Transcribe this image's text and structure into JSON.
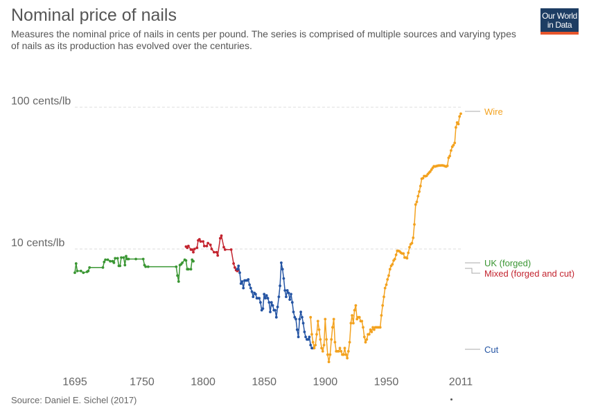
{
  "header": {
    "title": "Nominal price of nails",
    "subtitle": "Measures the nominal price of nails in cents per pound. The series is comprised of multiple sources and varying types of nails as its production has evolved over the centuries."
  },
  "logo": {
    "line1": "Our World",
    "line2": "in Data",
    "bg_color": "#1d3d63",
    "accent_color": "#e7552c"
  },
  "footer": {
    "source": "Source: Daniel E. Sichel (2017)"
  },
  "chart_data": {
    "type": "line",
    "title": "Nominal price of nails",
    "xlabel": "",
    "ylabel": "",
    "y_scale": "log",
    "xlim": [
      1695,
      2011
    ],
    "ylim": [
      1.5,
      120
    ],
    "x_ticks": [
      1695,
      1750,
      1800,
      1850,
      1900,
      1950,
      2011
    ],
    "y_ticks": [
      {
        "value": 10,
        "label": "10 cents/lb"
      },
      {
        "value": 100,
        "label": "100 cents/lb"
      }
    ],
    "grid": "horizontal-dashed",
    "legend": "line-end-labels-right",
    "series": [
      {
        "name": "UK (forged)",
        "color": "#3a9633",
        "points": [
          [
            1695,
            6.8
          ],
          [
            1696,
            7.9
          ],
          [
            1697,
            7.0
          ],
          [
            1700,
            7.0
          ],
          [
            1702,
            6.8
          ],
          [
            1705,
            6.9
          ],
          [
            1706,
            7.0
          ],
          [
            1707,
            7.4
          ],
          [
            1718,
            7.4
          ],
          [
            1719,
            8.1
          ],
          [
            1720,
            8.4
          ],
          [
            1722,
            8.4
          ],
          [
            1724,
            8.2
          ],
          [
            1726,
            8.2
          ],
          [
            1727,
            8.0
          ],
          [
            1728,
            8.6
          ],
          [
            1730,
            8.6
          ],
          [
            1731,
            7.6
          ],
          [
            1732,
            7.6
          ],
          [
            1733,
            8.7
          ],
          [
            1735,
            8.7
          ],
          [
            1736,
            7.7
          ],
          [
            1737,
            8.9
          ],
          [
            1738,
            8.5
          ],
          [
            1739,
            8.5
          ],
          [
            1745,
            8.5
          ],
          [
            1751,
            8.5
          ],
          [
            1752,
            7.7
          ],
          [
            1753,
            7.5
          ],
          [
            1755,
            7.5
          ],
          [
            1778,
            7.5
          ],
          [
            1779,
            6.5
          ],
          [
            1780,
            5.9
          ],
          [
            1781,
            7.7
          ],
          [
            1782,
            7.8
          ],
          [
            1783,
            8.0
          ],
          [
            1785,
            8.4
          ],
          [
            1786,
            8.3
          ],
          [
            1787,
            7.2
          ],
          [
            1788,
            7.2
          ],
          [
            1790,
            7.2
          ],
          [
            1791,
            8.4
          ],
          [
            1792,
            8.2
          ]
        ]
      },
      {
        "name": "Mixed (forged and cut)",
        "color": "#c3242f",
        "points": [
          [
            1786,
            10.4
          ],
          [
            1787,
            10.2
          ],
          [
            1788,
            10.5
          ],
          [
            1790,
            9.9
          ],
          [
            1791,
            9.9
          ],
          [
            1792,
            9.5
          ],
          [
            1793,
            10.0
          ],
          [
            1795,
            10.2
          ],
          [
            1796,
            11.5
          ],
          [
            1797,
            11.7
          ],
          [
            1798,
            11.3
          ],
          [
            1800,
            11.3
          ],
          [
            1801,
            10.5
          ],
          [
            1803,
            10.5
          ],
          [
            1804,
            11.0
          ],
          [
            1806,
            10.7
          ],
          [
            1807,
            10.0
          ],
          [
            1809,
            9.5
          ],
          [
            1811,
            9.5
          ],
          [
            1812,
            9.0
          ],
          [
            1814,
            11.9
          ],
          [
            1815,
            12.4
          ],
          [
            1817,
            10.3
          ],
          [
            1818,
            9.9
          ],
          [
            1823,
            9.9
          ],
          [
            1825,
            7.9
          ],
          [
            1826,
            7.4
          ],
          [
            1827,
            7.1
          ],
          [
            1828,
            7.0
          ],
          [
            1829,
            7.1
          ]
        ]
      },
      {
        "name": "Cut",
        "color": "#2454a3",
        "points": [
          [
            1828,
            7.2
          ],
          [
            1829,
            7.6
          ],
          [
            1830,
            6.8
          ],
          [
            1831,
            5.7
          ],
          [
            1832,
            5.9
          ],
          [
            1833,
            5.3
          ],
          [
            1834,
            6.0
          ],
          [
            1835,
            6.0
          ],
          [
            1836,
            6.0
          ],
          [
            1837,
            6.1
          ],
          [
            1838,
            5.6
          ],
          [
            1839,
            5.3
          ],
          [
            1840,
            5.0
          ],
          [
            1841,
            4.6
          ],
          [
            1842,
            4.9
          ],
          [
            1843,
            4.8
          ],
          [
            1844,
            4.5
          ],
          [
            1845,
            4.5
          ],
          [
            1846,
            4.5
          ],
          [
            1847,
            4.2
          ],
          [
            1848,
            3.7
          ],
          [
            1849,
            3.8
          ],
          [
            1850,
            4.8
          ],
          [
            1851,
            4.5
          ],
          [
            1852,
            4.7
          ],
          [
            1853,
            4.5
          ],
          [
            1854,
            4.2
          ],
          [
            1855,
            3.6
          ],
          [
            1856,
            4.2
          ],
          [
            1857,
            4.0
          ],
          [
            1858,
            3.7
          ],
          [
            1859,
            3.7
          ],
          [
            1860,
            3.3
          ],
          [
            1861,
            3.9
          ],
          [
            1862,
            4.6
          ],
          [
            1863,
            5.5
          ],
          [
            1864,
            8.0
          ],
          [
            1865,
            7.2
          ],
          [
            1866,
            6.2
          ],
          [
            1867,
            5.1
          ],
          [
            1868,
            4.6
          ],
          [
            1869,
            5.1
          ],
          [
            1870,
            4.9
          ],
          [
            1871,
            4.4
          ],
          [
            1872,
            4.8
          ],
          [
            1873,
            4.2
          ],
          [
            1874,
            3.6
          ],
          [
            1875,
            3.3
          ],
          [
            1876,
            3.2
          ],
          [
            1877,
            2.7
          ],
          [
            1878,
            2.4
          ],
          [
            1879,
            3.2
          ],
          [
            1880,
            3.6
          ],
          [
            1881,
            3.3
          ],
          [
            1882,
            3.0
          ],
          [
            1883,
            2.6
          ],
          [
            1884,
            2.4
          ],
          [
            1885,
            2.3
          ],
          [
            1886,
            2.3
          ],
          [
            1887,
            2.4
          ],
          [
            1888,
            2.1
          ],
          [
            1889,
            2.0
          ],
          [
            1890,
            2.0
          ]
        ]
      },
      {
        "name": "Wire",
        "color": "#f3a21f",
        "points": [
          [
            1888,
            3.3
          ],
          [
            1889,
            2.5
          ],
          [
            1890,
            2.2
          ],
          [
            1891,
            2.0
          ],
          [
            1892,
            2.1
          ],
          [
            1893,
            2.5
          ],
          [
            1894,
            3.1
          ],
          [
            1895,
            2.7
          ],
          [
            1896,
            2.3
          ],
          [
            1897,
            2.0
          ],
          [
            1898,
            1.9
          ],
          [
            1899,
            2.1
          ],
          [
            1900,
            3.2
          ],
          [
            1901,
            2.3
          ],
          [
            1902,
            1.8
          ],
          [
            1903,
            1.6
          ],
          [
            1904,
            1.8
          ],
          [
            1905,
            2.3
          ],
          [
            1906,
            2.8
          ],
          [
            1907,
            3.2
          ],
          [
            1908,
            2.2
          ],
          [
            1909,
            1.9
          ],
          [
            1910,
            1.9
          ],
          [
            1911,
            1.9
          ],
          [
            1912,
            2.0
          ],
          [
            1913,
            1.9
          ],
          [
            1914,
            1.8
          ],
          [
            1915,
            1.8
          ],
          [
            1916,
            2.0
          ],
          [
            1917,
            1.8
          ],
          [
            1918,
            1.7
          ],
          [
            1919,
            1.9
          ],
          [
            1920,
            2.2
          ],
          [
            1921,
            3.0
          ],
          [
            1922,
            3.4
          ],
          [
            1923,
            3.0
          ],
          [
            1924,
            3.7
          ],
          [
            1925,
            4.0
          ],
          [
            1926,
            3.2
          ],
          [
            1927,
            3.3
          ],
          [
            1928,
            3.3
          ],
          [
            1929,
            3.1
          ],
          [
            1930,
            3.1
          ],
          [
            1931,
            2.8
          ],
          [
            1932,
            2.4
          ],
          [
            1933,
            2.2
          ],
          [
            1934,
            2.3
          ],
          [
            1935,
            2.5
          ],
          [
            1936,
            2.5
          ],
          [
            1937,
            2.7
          ],
          [
            1938,
            2.6
          ],
          [
            1939,
            2.8
          ],
          [
            1940,
            2.7
          ],
          [
            1941,
            2.8
          ],
          [
            1942,
            2.8
          ],
          [
            1943,
            2.8
          ],
          [
            1944,
            2.8
          ],
          [
            1945,
            2.8
          ],
          [
            1946,
            3.4
          ],
          [
            1947,
            4.0
          ],
          [
            1948,
            4.6
          ],
          [
            1949,
            5.3
          ],
          [
            1950,
            5.6
          ],
          [
            1951,
            6.1
          ],
          [
            1952,
            6.5
          ],
          [
            1953,
            7.2
          ],
          [
            1954,
            7.6
          ],
          [
            1955,
            7.8
          ],
          [
            1956,
            8.3
          ],
          [
            1957,
            8.5
          ],
          [
            1958,
            9.1
          ],
          [
            1959,
            9.7
          ],
          [
            1960,
            9.7
          ],
          [
            1961,
            9.6
          ],
          [
            1962,
            9.4
          ],
          [
            1963,
            9.3
          ],
          [
            1964,
            9.3
          ],
          [
            1965,
            8.7
          ],
          [
            1966,
            8.7
          ],
          [
            1967,
            8.6
          ],
          [
            1968,
            9.4
          ],
          [
            1969,
            10.3
          ],
          [
            1970,
            10.8
          ],
          [
            1971,
            11.0
          ],
          [
            1972,
            12.0
          ],
          [
            1973,
            14.9
          ],
          [
            1974,
            20.6
          ],
          [
            1975,
            21.5
          ],
          [
            1976,
            23.6
          ],
          [
            1977,
            25.4
          ],
          [
            1978,
            27.8
          ],
          [
            1979,
            31.3
          ],
          [
            1980,
            31.6
          ],
          [
            1981,
            32.7
          ],
          [
            1982,
            32.6
          ],
          [
            1983,
            32.8
          ],
          [
            1984,
            33.7
          ],
          [
            1985,
            34.5
          ],
          [
            1986,
            35.2
          ],
          [
            1987,
            36.3
          ],
          [
            1988,
            37.4
          ],
          [
            1989,
            38.3
          ],
          [
            1990,
            38.2
          ],
          [
            1991,
            38.4
          ],
          [
            1992,
            38.6
          ],
          [
            1993,
            38.8
          ],
          [
            1994,
            38.8
          ],
          [
            1995,
            38.9
          ],
          [
            1996,
            38.9
          ],
          [
            1997,
            38.7
          ],
          [
            1998,
            38.4
          ],
          [
            1999,
            38.1
          ],
          [
            2000,
            38.6
          ],
          [
            2001,
            44.0
          ],
          [
            2002,
            45.3
          ],
          [
            2003,
            49.5
          ],
          [
            2004,
            52.6
          ],
          [
            2005,
            54.0
          ],
          [
            2006,
            56.0
          ],
          [
            2007,
            72.0
          ],
          [
            2008,
            78.0
          ],
          [
            2009,
            76.0
          ],
          [
            2010,
            86.0
          ],
          [
            2011,
            90.0
          ]
        ]
      }
    ],
    "end_labels": [
      {
        "series": "Wire",
        "text": "Wire",
        "color": "#f3a21f"
      },
      {
        "series": "UK (forged)",
        "text": "UK (forged)",
        "color": "#3a9633"
      },
      {
        "series": "Mixed (forged and cut)",
        "text": "Mixed (forged and cut)",
        "color": "#c3242f"
      },
      {
        "series": "Cut",
        "text": "Cut",
        "color": "#2454a3"
      }
    ]
  }
}
